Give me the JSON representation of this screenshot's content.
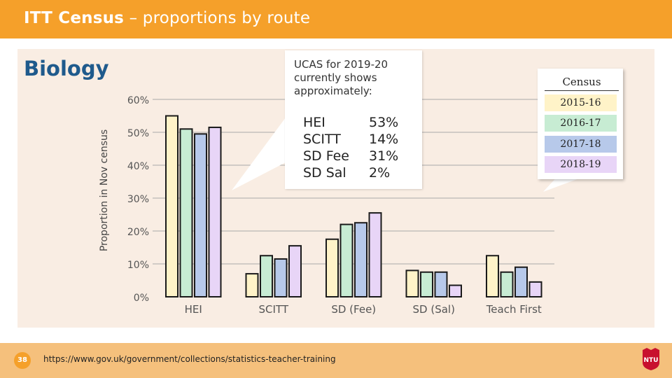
{
  "header": {
    "title_bold": "ITT Census",
    "title_rest": " – proportions by route"
  },
  "subject": "Biology",
  "callout": {
    "heading": "UCAS for 2019-20 currently shows approximately:",
    "shares": [
      {
        "route": "HEI",
        "value": "53%"
      },
      {
        "route": "SCITT",
        "value": "14%"
      },
      {
        "route": "SD Fee",
        "value": "31%"
      },
      {
        "route": "SD Sal",
        "value": "2%"
      }
    ]
  },
  "legend": {
    "title": "Census",
    "items": [
      {
        "label": "2015-16",
        "color": "#fff3c8"
      },
      {
        "label": "2016-17",
        "color": "#c7ecd3"
      },
      {
        "label": "2017-18",
        "color": "#b7c9ea"
      },
      {
        "label": "2018-19",
        "color": "#e8d5f7"
      }
    ]
  },
  "chart_data": {
    "type": "bar",
    "title": "Biology",
    "ylabel": "Proportion in Nov census",
    "xlabel": "",
    "ylim": [
      0,
      60
    ],
    "yticks": [
      "0%",
      "10%",
      "20%",
      "30%",
      "40%",
      "50%",
      "60%"
    ],
    "grid": true,
    "categories": [
      "HEI",
      "SCITT",
      "SD (Fee)",
      "SD (Sal)",
      "Teach First"
    ],
    "series": [
      {
        "name": "2015-16",
        "color": "#fff3c8",
        "values": [
          55,
          7,
          17.5,
          8,
          12.5
        ]
      },
      {
        "name": "2016-17",
        "color": "#c7ecd3",
        "values": [
          51,
          12.5,
          22,
          7.5,
          7.5
        ]
      },
      {
        "name": "2017-18",
        "color": "#b7c9ea",
        "values": [
          49.5,
          11.5,
          22.5,
          7.5,
          9
        ]
      },
      {
        "name": "2018-19",
        "color": "#e8d5f7",
        "values": [
          51.5,
          15.5,
          25.5,
          3.5,
          4.5
        ]
      }
    ]
  },
  "footer": {
    "page_number": "38",
    "url": "https://www.gov.uk/government/collections/statistics-teacher-training",
    "logo_text": "NTU"
  }
}
